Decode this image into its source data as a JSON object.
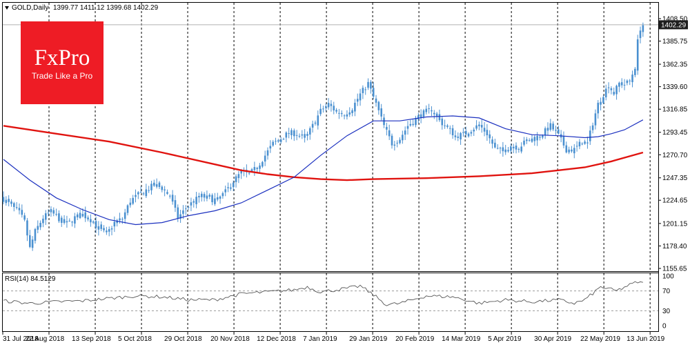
{
  "header": {
    "symbol_label": "GOLD,Daily",
    "ohlc": "1399.77 1411.12 1399.68 1402.29"
  },
  "logo": {
    "brand": "FxPro",
    "tagline": "Trade Like a Pro"
  },
  "rsi_panel": {
    "label": "RSI(14) 84.5129",
    "y_ticks": [
      "100",
      "70",
      "30",
      "0"
    ],
    "levels": [
      70,
      30
    ]
  },
  "colors": {
    "candles": "#4a90d0",
    "ma_short": "#1a2fbf",
    "ma_long": "#e0130f",
    "rsi_line": "#555555",
    "price_tag_bg": "#1f1f1f",
    "logo_bg": "#ee1c25"
  },
  "chart_data": {
    "type": "candlestick",
    "y_ticks": [
      "1408.50",
      "1385.75",
      "1362.35",
      "1339.60",
      "1316.85",
      "1293.45",
      "1270.70",
      "1247.35",
      "1224.65",
      "1201.15",
      "1178.40",
      "1155.65"
    ],
    "ylim": [
      1155.65,
      1408.5
    ],
    "last_price": "1402.29",
    "x_tick_labels": [
      "31 Jul 2018",
      "22 Aug 2018",
      "13 Sep 2018",
      "5 Oct 2018",
      "29 Oct 2018",
      "20 Nov 2018",
      "12 Dec 2018",
      "7 Jan 2019",
      "29 Jan 2019",
      "20 Feb 2019",
      "14 Mar 2019",
      "5 Apr 2019",
      "30 Apr 2019",
      "22 May 2019",
      "13 Jun 2019"
    ],
    "price_path": [
      [
        0,
        1226
      ],
      [
        3,
        1219
      ],
      [
        6,
        1212
      ],
      [
        8,
        1203
      ],
      [
        10,
        1176
      ],
      [
        12,
        1193
      ],
      [
        15,
        1207
      ],
      [
        18,
        1213
      ],
      [
        21,
        1206
      ],
      [
        24,
        1200
      ],
      [
        27,
        1207
      ],
      [
        30,
        1210
      ],
      [
        33,
        1205
      ],
      [
        36,
        1196
      ],
      [
        39,
        1190
      ],
      [
        42,
        1202
      ],
      [
        45,
        1206
      ],
      [
        48,
        1224
      ],
      [
        51,
        1230
      ],
      [
        54,
        1235
      ],
      [
        57,
        1240
      ],
      [
        60,
        1237
      ],
      [
        63,
        1229
      ],
      [
        66,
        1207
      ],
      [
        69,
        1216
      ],
      [
        72,
        1224
      ],
      [
        75,
        1229
      ],
      [
        78,
        1226
      ],
      [
        81,
        1225
      ],
      [
        84,
        1233
      ],
      [
        87,
        1244
      ],
      [
        90,
        1253
      ],
      [
        93,
        1251
      ],
      [
        96,
        1258
      ],
      [
        99,
        1270
      ],
      [
        102,
        1282
      ],
      [
        105,
        1287
      ],
      [
        108,
        1293
      ],
      [
        111,
        1292
      ],
      [
        114,
        1286
      ],
      [
        117,
        1300
      ],
      [
        120,
        1315
      ],
      [
        123,
        1322
      ],
      [
        126,
        1314
      ],
      [
        129,
        1312
      ],
      [
        132,
        1318
      ],
      [
        135,
        1332
      ],
      [
        138,
        1343
      ],
      [
        141,
        1322
      ],
      [
        144,
        1300
      ],
      [
        147,
        1282
      ],
      [
        150,
        1287
      ],
      [
        153,
        1300
      ],
      [
        156,
        1307
      ],
      [
        159,
        1313
      ],
      [
        162,
        1317
      ],
      [
        165,
        1305
      ],
      [
        168,
        1298
      ],
      [
        171,
        1290
      ],
      [
        174,
        1291
      ],
      [
        177,
        1296
      ],
      [
        180,
        1301
      ],
      [
        183,
        1292
      ],
      [
        186,
        1277
      ],
      [
        189,
        1274
      ],
      [
        192,
        1280
      ],
      [
        195,
        1278
      ],
      [
        198,
        1285
      ],
      [
        201,
        1287
      ],
      [
        204,
        1292
      ],
      [
        207,
        1300
      ],
      [
        210,
        1290
      ],
      [
        213,
        1276
      ],
      [
        216,
        1276
      ],
      [
        219,
        1284
      ],
      [
        221,
        1282
      ],
      [
        223,
        1303
      ],
      [
        225,
        1322
      ],
      [
        227,
        1332
      ],
      [
        229,
        1341
      ],
      [
        231,
        1333
      ],
      [
        233,
        1343
      ],
      [
        235,
        1342
      ],
      [
        237,
        1345
      ],
      [
        239,
        1360
      ],
      [
        240,
        1385
      ],
      [
        241,
        1399
      ],
      [
        242,
        1402
      ]
    ],
    "ma_short_path": [
      [
        0,
        1266
      ],
      [
        10,
        1245
      ],
      [
        20,
        1227
      ],
      [
        30,
        1215
      ],
      [
        40,
        1205
      ],
      [
        50,
        1200
      ],
      [
        60,
        1202
      ],
      [
        70,
        1209
      ],
      [
        80,
        1214
      ],
      [
        90,
        1222
      ],
      [
        100,
        1235
      ],
      [
        110,
        1248
      ],
      [
        120,
        1270
      ],
      [
        130,
        1290
      ],
      [
        140,
        1305
      ],
      [
        150,
        1305
      ],
      [
        160,
        1309
      ],
      [
        170,
        1310
      ],
      [
        180,
        1308
      ],
      [
        190,
        1297
      ],
      [
        200,
        1291
      ],
      [
        210,
        1290
      ],
      [
        220,
        1288
      ],
      [
        225,
        1289
      ],
      [
        230,
        1292
      ],
      [
        235,
        1296
      ],
      [
        242,
        1306
      ]
    ],
    "ma_long_path": [
      [
        0,
        1300
      ],
      [
        20,
        1292
      ],
      [
        40,
        1284
      ],
      [
        60,
        1273
      ],
      [
        80,
        1261
      ],
      [
        90,
        1255
      ],
      [
        100,
        1251
      ],
      [
        110,
        1248
      ],
      [
        120,
        1246
      ],
      [
        130,
        1245
      ],
      [
        140,
        1246
      ],
      [
        160,
        1247
      ],
      [
        180,
        1249
      ],
      [
        200,
        1252
      ],
      [
        210,
        1255
      ],
      [
        220,
        1258
      ],
      [
        230,
        1264
      ],
      [
        242,
        1273
      ]
    ],
    "rsi_path": [
      [
        0,
        50
      ],
      [
        10,
        45
      ],
      [
        20,
        48
      ],
      [
        30,
        50
      ],
      [
        40,
        55
      ],
      [
        50,
        60
      ],
      [
        60,
        58
      ],
      [
        70,
        52
      ],
      [
        80,
        52
      ],
      [
        90,
        64
      ],
      [
        100,
        68
      ],
      [
        110,
        72
      ],
      [
        115,
        78
      ],
      [
        120,
        68
      ],
      [
        130,
        75
      ],
      [
        135,
        80
      ],
      [
        140,
        62
      ],
      [
        145,
        42
      ],
      [
        150,
        45
      ],
      [
        160,
        60
      ],
      [
        170,
        58
      ],
      [
        180,
        45
      ],
      [
        190,
        52
      ],
      [
        200,
        48
      ],
      [
        210,
        52
      ],
      [
        216,
        45
      ],
      [
        220,
        52
      ],
      [
        226,
        78
      ],
      [
        232,
        70
      ],
      [
        236,
        80
      ],
      [
        240,
        88
      ],
      [
        242,
        85
      ]
    ]
  }
}
